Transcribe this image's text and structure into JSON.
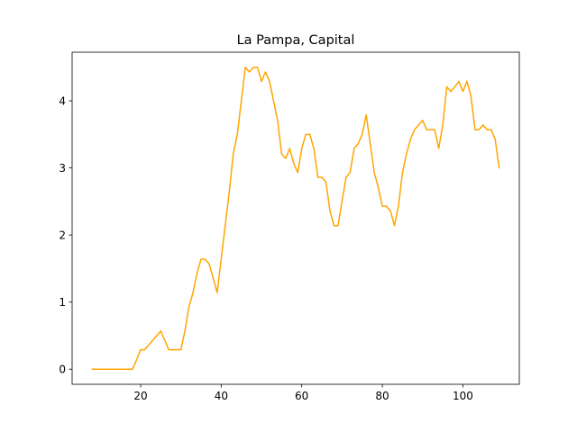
{
  "chart_data": {
    "type": "line",
    "title": "La Pampa, Capital",
    "xlabel": "",
    "ylabel": "",
    "xlim": [
      3.0,
      114.0
    ],
    "ylim": [
      -0.225,
      4.725
    ],
    "x_ticks": [
      20,
      40,
      60,
      80,
      100
    ],
    "y_ticks": [
      0,
      1,
      2,
      3,
      4
    ],
    "grid": false,
    "legend": "none",
    "series": [
      {
        "color": "#ffa500",
        "x": [
          8,
          9,
          10,
          11,
          12,
          13,
          14,
          15,
          16,
          17,
          18,
          19,
          20,
          21,
          22,
          23,
          24,
          25,
          26,
          27,
          28,
          29,
          30,
          31,
          32,
          33,
          34,
          35,
          36,
          37,
          38,
          39,
          40,
          41,
          42,
          43,
          44,
          45,
          46,
          47,
          48,
          49,
          50,
          51,
          52,
          53,
          54,
          55,
          56,
          57,
          58,
          59,
          60,
          61,
          62,
          63,
          64,
          65,
          66,
          67,
          68,
          69,
          70,
          71,
          72,
          73,
          74,
          75,
          76,
          77,
          78,
          79,
          80,
          81,
          82,
          83,
          84,
          85,
          86,
          87,
          88,
          89,
          90,
          91,
          92,
          93,
          94,
          95,
          96,
          97,
          98,
          99,
          100,
          101,
          102,
          103,
          104,
          105,
          106,
          107,
          108,
          109
        ],
        "y": [
          0,
          0,
          0,
          0,
          0,
          0,
          0,
          0,
          0,
          0,
          0,
          0.14,
          0.29,
          0.29,
          0.36,
          0.43,
          0.5,
          0.57,
          0.43,
          0.29,
          0.29,
          0.29,
          0.29,
          0.57,
          0.93,
          1.14,
          1.43,
          1.64,
          1.64,
          1.57,
          1.36,
          1.14,
          1.64,
          2.14,
          2.64,
          3.21,
          3.5,
          4.0,
          4.5,
          4.43,
          4.5,
          4.5,
          4.29,
          4.43,
          4.29,
          4.0,
          3.71,
          3.21,
          3.14,
          3.29,
          3.07,
          2.93,
          3.29,
          3.5,
          3.5,
          3.29,
          2.86,
          2.86,
          2.79,
          2.36,
          2.14,
          2.14,
          2.5,
          2.86,
          2.93,
          3.29,
          3.36,
          3.5,
          3.79,
          3.36,
          2.93,
          2.71,
          2.43,
          2.43,
          2.36,
          2.14,
          2.43,
          2.93,
          3.21,
          3.43,
          3.57,
          3.64,
          3.71,
          3.57,
          3.57,
          3.57,
          3.29,
          3.64,
          4.21,
          4.14,
          4.21,
          4.29,
          4.14,
          4.29,
          4.07,
          3.57,
          3.57,
          3.64,
          3.57,
          3.57,
          3.43,
          3.0
        ]
      }
    ]
  }
}
